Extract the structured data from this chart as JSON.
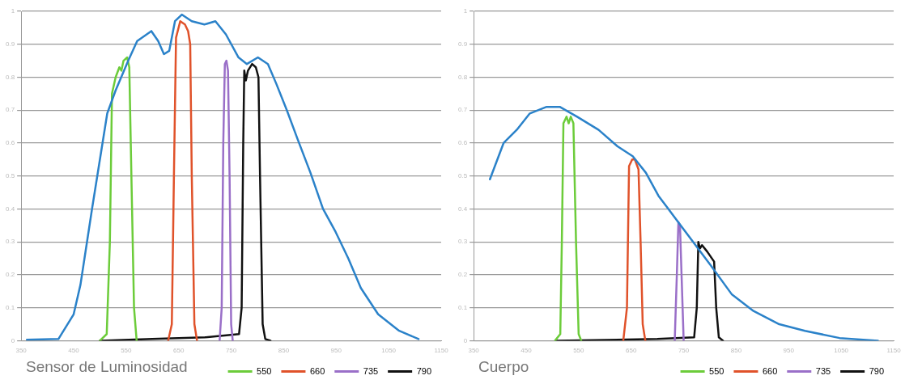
{
  "chart_data": [
    {
      "type": "line",
      "title": "Sensor de Luminosidad",
      "xlim": [
        350,
        1150
      ],
      "xticks": [
        350,
        450,
        550,
        650,
        750,
        850,
        950,
        1050,
        1150
      ],
      "ylim": [
        0,
        1
      ],
      "yticks": [
        0,
        0.1,
        0.2,
        0.3,
        0.4,
        0.5,
        0.6,
        0.7,
        0.8,
        0.9,
        1
      ],
      "grid": "y",
      "legend": "bottom",
      "marker": "none",
      "line_style": "solid",
      "series": [
        {
          "color": "#2b82c9",
          "x": [
            361,
            421,
            450,
            463,
            485,
            498,
            514,
            530,
            554,
            571,
            598,
            611,
            622,
            632,
            643,
            656,
            675,
            699,
            720,
            740,
            764,
            780,
            801,
            820,
            836,
            856,
            877,
            901,
            925,
            949,
            973,
            997,
            1030,
            1070,
            1107
          ],
          "values": [
            0.003,
            0.005,
            0.08,
            0.17,
            0.4,
            0.53,
            0.69,
            0.76,
            0.85,
            0.91,
            0.94,
            0.91,
            0.87,
            0.88,
            0.97,
            0.99,
            0.97,
            0.96,
            0.97,
            0.93,
            0.86,
            0.84,
            0.86,
            0.84,
            0.78,
            0.7,
            0.61,
            0.51,
            0.4,
            0.33,
            0.25,
            0.16,
            0.08,
            0.03,
            0.005
          ]
        },
        {
          "name": "550",
          "color": "#6ccc3a",
          "x": [
            500,
            513,
            519,
            523,
            530,
            537,
            541,
            545,
            552,
            556,
            560,
            565,
            570
          ],
          "values": [
            0,
            0.02,
            0.3,
            0.75,
            0.8,
            0.83,
            0.82,
            0.85,
            0.86,
            0.83,
            0.5,
            0.1,
            0
          ]
        },
        {
          "name": "660",
          "color": "#e0522a",
          "x": [
            630,
            637,
            641,
            645,
            653,
            662,
            668,
            672,
            675,
            680,
            685
          ],
          "values": [
            0,
            0.05,
            0.5,
            0.92,
            0.97,
            0.96,
            0.94,
            0.9,
            0.5,
            0.05,
            0
          ]
        },
        {
          "name": "735",
          "color": "#9a6fc8",
          "x": [
            728,
            732,
            735,
            738,
            741,
            744,
            747,
            750,
            753
          ],
          "values": [
            0,
            0.1,
            0.6,
            0.84,
            0.85,
            0.82,
            0.5,
            0.05,
            0
          ]
        },
        {
          "name": "790",
          "color": "#111111",
          "x": [
            500,
            600,
            700,
            765,
            770,
            773,
            775,
            778,
            782,
            790,
            797,
            802,
            805,
            810,
            815,
            825
          ],
          "values": [
            0,
            0.005,
            0.01,
            0.02,
            0.1,
            0.6,
            0.82,
            0.79,
            0.82,
            0.84,
            0.83,
            0.8,
            0.5,
            0.05,
            0.005,
            0
          ]
        }
      ]
    },
    {
      "type": "line",
      "title": "Cuerpo",
      "xlim": [
        350,
        1150
      ],
      "xticks": [
        350,
        450,
        550,
        650,
        750,
        850,
        950,
        1050,
        1150
      ],
      "ylim": [
        0,
        1
      ],
      "yticks": [
        0,
        0.1,
        0.2,
        0.3,
        0.4,
        0.5,
        0.6,
        0.7,
        0.8,
        0.9,
        1
      ],
      "grid": "y",
      "legend": "bottom",
      "marker": "none",
      "line_style": "solid",
      "series": [
        {
          "color": "#2b82c9",
          "x": [
            381,
            407,
            432,
            457,
            489,
            514,
            547,
            588,
            624,
            653,
            678,
            702,
            735,
            768,
            801,
            842,
            883,
            932,
            981,
            1047,
            1120
          ],
          "values": [
            0.49,
            0.6,
            0.64,
            0.69,
            0.71,
            0.71,
            0.68,
            0.64,
            0.59,
            0.56,
            0.51,
            0.44,
            0.37,
            0.3,
            0.23,
            0.14,
            0.09,
            0.05,
            0.03,
            0.008,
            0
          ]
        },
        {
          "name": "550",
          "color": "#6ccc3a",
          "x": [
            505,
            515,
            518,
            521,
            527,
            531,
            535,
            540,
            545,
            550,
            555
          ],
          "values": [
            0,
            0.02,
            0.3,
            0.66,
            0.68,
            0.66,
            0.68,
            0.66,
            0.3,
            0.02,
            0
          ]
        },
        {
          "name": "660",
          "color": "#e0522a",
          "x": [
            635,
            642,
            646,
            652,
            657,
            664,
            668,
            672,
            677
          ],
          "values": [
            0,
            0.1,
            0.53,
            0.55,
            0.55,
            0.52,
            0.3,
            0.05,
            0
          ]
        },
        {
          "name": "735",
          "color": "#9a6fc8",
          "x": [
            733,
            737,
            740,
            743,
            746,
            750
          ],
          "values": [
            0,
            0.2,
            0.36,
            0.35,
            0.2,
            0
          ]
        },
        {
          "name": "790",
          "color": "#111111",
          "x": [
            507,
            700,
            770,
            775,
            778,
            781,
            785,
            795,
            808,
            812,
            817,
            825
          ],
          "values": [
            0,
            0.005,
            0.01,
            0.1,
            0.3,
            0.28,
            0.29,
            0.27,
            0.24,
            0.1,
            0.01,
            0
          ]
        }
      ]
    }
  ]
}
